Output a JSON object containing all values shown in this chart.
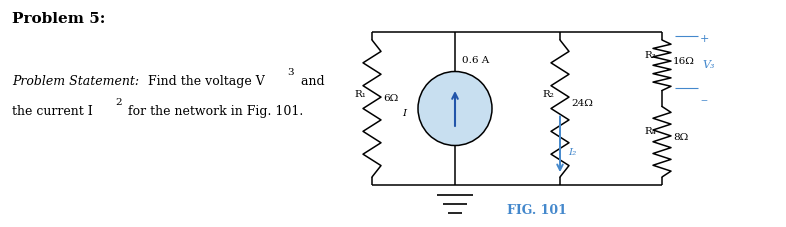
{
  "title": "Problem 5:",
  "ps_italic": "Problem Statement:",
  "ps_text1": "Find the voltage V",
  "ps_text2": "3",
  "ps_text3": " and",
  "ps_text4": "the current I",
  "ps_text5": "2",
  "ps_text6": " for the network in Fig. 101.",
  "fig_label": "FIG. 101",
  "bg_color": "#ffffff",
  "black": "#000000",
  "blue": "#4488cc",
  "circle_fill": "#c8dff0",
  "arrow_color": "#2255aa",
  "R1_label": "R₁",
  "R1_val": "6Ω",
  "R2_label": "R₂",
  "R2_val": "24Ω",
  "R3_label": "R₃",
  "R3_val": "16Ω",
  "R4_label": "R₄",
  "R4_val": "8Ω",
  "I_label": "I",
  "cs_label": "0.6 A",
  "I2_label": "I₂",
  "V3_label": "V₃",
  "font_title": 11,
  "font_ps": 9,
  "font_comp": 7.5
}
